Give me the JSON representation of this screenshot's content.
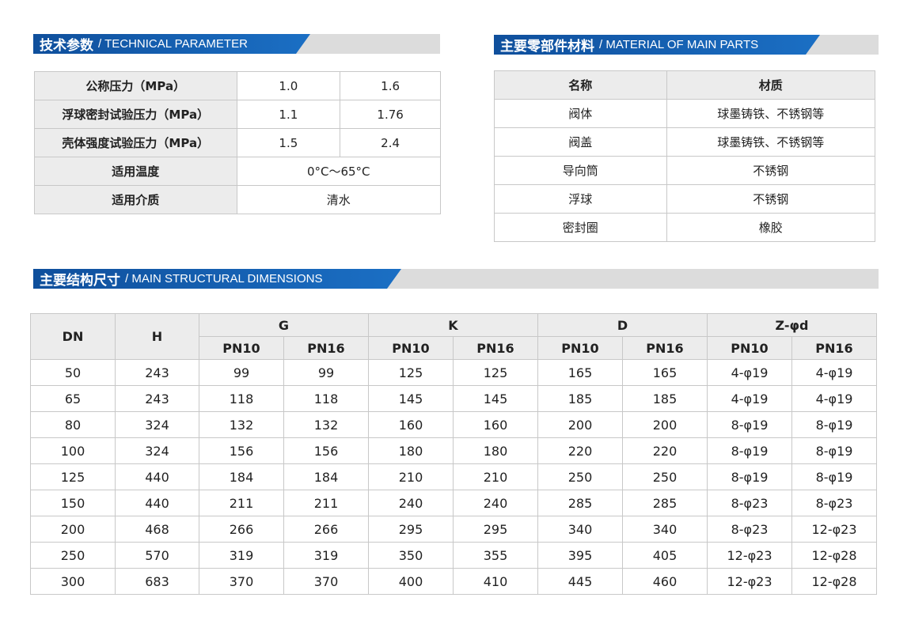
{
  "tech": {
    "title_cn": "技术参数",
    "title_en": "/ TECHNICAL PARAMETER",
    "rows": [
      [
        "公称压力（MPa）",
        "1.0",
        "1.6"
      ],
      [
        "浮球密封试验压力（MPa）",
        "1.1",
        "1.76"
      ],
      [
        "壳体强度试验压力（MPa）",
        "1.5",
        "2.4"
      ]
    ],
    "temp_label": "适用温度",
    "temp_value": "0°C～65°C",
    "medium_label": "适用介质",
    "medium_value": "清水"
  },
  "material": {
    "title_cn": "主要零部件材料",
    "title_en": "/ MATERIAL OF MAIN PARTS",
    "headers": [
      "名称",
      "材质"
    ],
    "rows": [
      [
        "阀体",
        "球墨铸铁、不锈钢等"
      ],
      [
        "阀盖",
        "球墨铸铁、不锈钢等"
      ],
      [
        "导向筒",
        "不锈钢"
      ],
      [
        "浮球",
        "不锈钢"
      ],
      [
        "密封圈",
        "橡胶"
      ]
    ]
  },
  "dims": {
    "title_cn": "主要结构尺寸",
    "title_en": "/ MAIN STRUCTURAL DIMENSIONS",
    "headers": [
      "DN",
      "H",
      "G",
      "K",
      "D",
      "Z-φd"
    ],
    "sub": [
      "PN10",
      "PN16",
      "PN10",
      "PN16",
      "PN10",
      "PN16",
      "PN10",
      "PN16"
    ],
    "rows": [
      [
        "50",
        "243",
        "99",
        "99",
        "125",
        "125",
        "165",
        "165",
        "4-φ19",
        "4-φ19"
      ],
      [
        "65",
        "243",
        "118",
        "118",
        "145",
        "145",
        "185",
        "185",
        "4-φ19",
        "4-φ19"
      ],
      [
        "80",
        "324",
        "132",
        "132",
        "160",
        "160",
        "200",
        "200",
        "8-φ19",
        "8-φ19"
      ],
      [
        "100",
        "324",
        "156",
        "156",
        "180",
        "180",
        "220",
        "220",
        "8-φ19",
        "8-φ19"
      ],
      [
        "125",
        "440",
        "184",
        "184",
        "210",
        "210",
        "250",
        "250",
        "8-φ19",
        "8-φ19"
      ],
      [
        "150",
        "440",
        "211",
        "211",
        "240",
        "240",
        "285",
        "285",
        "8-φ23",
        "8-φ23"
      ],
      [
        "200",
        "468",
        "266",
        "266",
        "295",
        "295",
        "340",
        "340",
        "8-φ23",
        "12-φ23"
      ],
      [
        "250",
        "570",
        "319",
        "319",
        "350",
        "355",
        "395",
        "405",
        "12-φ23",
        "12-φ28"
      ],
      [
        "300",
        "683",
        "370",
        "370",
        "400",
        "410",
        "445",
        "460",
        "12-φ23",
        "12-φ28"
      ]
    ]
  }
}
